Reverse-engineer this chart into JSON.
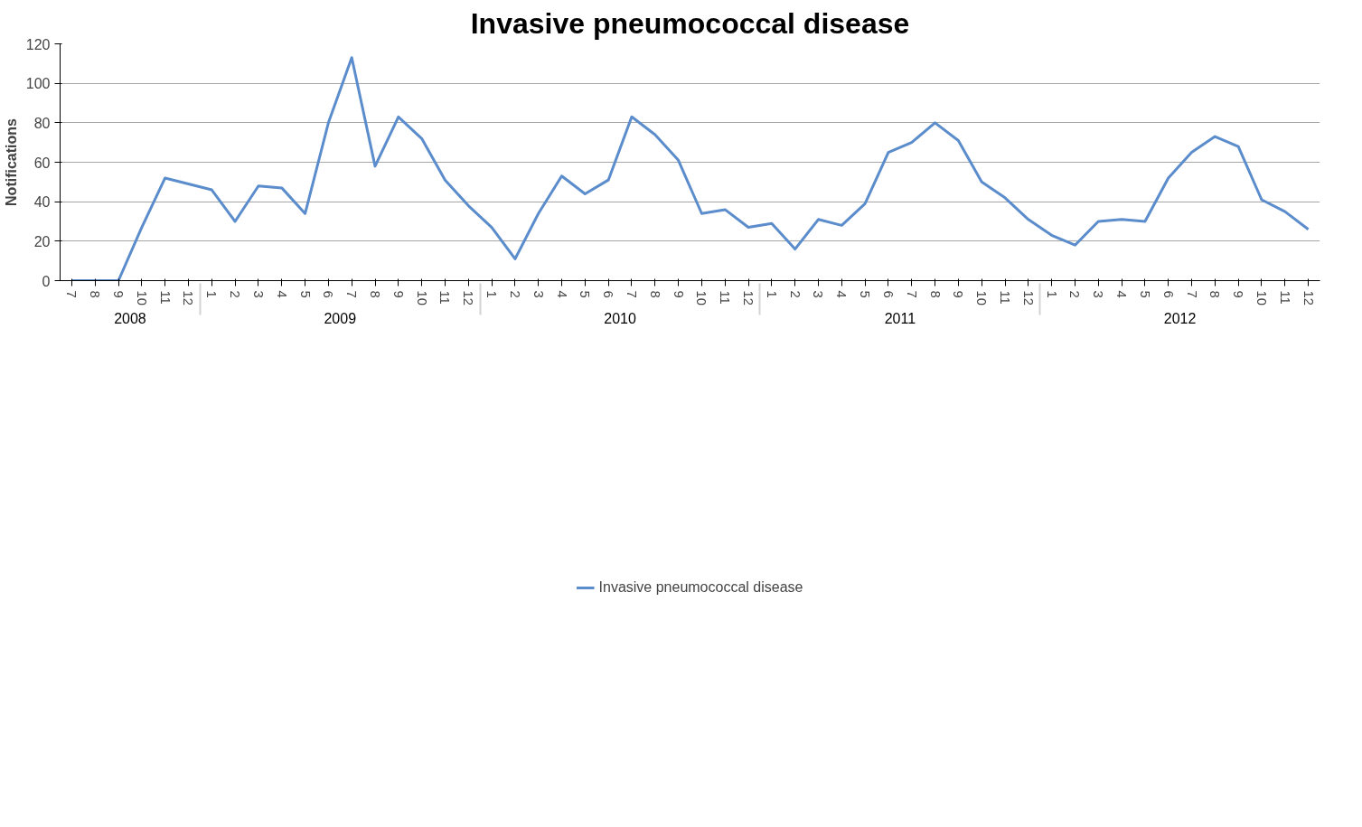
{
  "chart_data": {
    "type": "line",
    "title": "Invasive pneumococcal disease",
    "ylabel": "Notifications",
    "categories": [
      "7",
      "8",
      "9",
      "10",
      "11",
      "12",
      "1",
      "2",
      "3",
      "4",
      "5",
      "6",
      "7",
      "8",
      "9",
      "10",
      "11",
      "12",
      "1",
      "2",
      "3",
      "4",
      "5",
      "6",
      "7",
      "8",
      "9",
      "10",
      "11",
      "12",
      "1",
      "2",
      "3",
      "4",
      "5",
      "6",
      "7",
      "8",
      "9",
      "10",
      "11",
      "12",
      "1",
      "2",
      "3",
      "4",
      "5",
      "6",
      "7",
      "8",
      "9",
      "10",
      "11",
      "12"
    ],
    "annotations": [
      "2008",
      "2009",
      "2010",
      "2011",
      "2012"
    ],
    "series": [
      {
        "name": "Invasive pneumococcal disease",
        "color": "#5b8ccb",
        "values": [
          0,
          0,
          0,
          27,
          52,
          49,
          46,
          30,
          48,
          47,
          34,
          80,
          113,
          58,
          83,
          72,
          51,
          38,
          27,
          11,
          34,
          53,
          44,
          51,
          83,
          74,
          61,
          34,
          36,
          27,
          29,
          16,
          31,
          28,
          39,
          65,
          70,
          80,
          71,
          50,
          42,
          31,
          23,
          18,
          30,
          31,
          30,
          52,
          65,
          73,
          68,
          41,
          35,
          26
        ]
      }
    ],
    "ylim": [
      0,
      120
    ],
    "yticks": [
      0,
      20,
      40,
      60,
      80,
      100,
      120
    ],
    "grid": "y",
    "legend": "bottom"
  }
}
